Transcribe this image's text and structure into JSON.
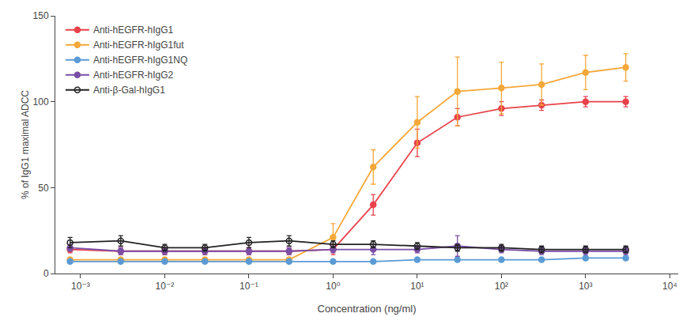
{
  "chart_data": {
    "type": "line",
    "xlabel": "Concentration (ng/ml)",
    "ylabel": "% of IgG1 maximal ADCC",
    "log": "x",
    "grid": false,
    "legend": "upper left",
    "marker": "circle",
    "xlim": [
      0.0005011872336272725,
      12589.254117941662
    ],
    "xticks": [
      {
        "value": 0.001,
        "label": "10⁻³"
      },
      {
        "value": 0.01,
        "label": "10⁻²"
      },
      {
        "value": 0.1,
        "label": "10⁻¹"
      },
      {
        "value": 1,
        "label": "10⁰"
      },
      {
        "value": 10,
        "label": "10¹"
      },
      {
        "value": 100,
        "label": "10²"
      },
      {
        "value": 1000,
        "label": "10³"
      },
      {
        "value": 10000,
        "label": "10⁴"
      }
    ],
    "ylim": [
      0,
      150
    ],
    "yticks": [
      0,
      50,
      100,
      150
    ],
    "x": [
      0.00075,
      0.003,
      0.01,
      0.03,
      0.1,
      0.3,
      1.0,
      3.0,
      10.0,
      30.0,
      100.0,
      300.0,
      1000.0,
      3000.0
    ],
    "series": [
      {
        "name": "Anti-hEGFR-hIgG1",
        "color": "#e8424a",
        "values": [
          14,
          13,
          13,
          13,
          13,
          13,
          14,
          40,
          76,
          91,
          96,
          98,
          100,
          100
        ],
        "yerr": [
          2,
          2,
          2,
          2,
          2,
          2,
          3,
          6,
          8,
          5,
          4,
          3,
          3,
          3
        ]
      },
      {
        "name": "Anti-hEGFR-hIgG1fut",
        "color": "#f5a83a",
        "values": [
          8,
          8,
          8,
          8,
          8,
          8,
          21,
          62,
          88,
          106,
          108,
          110,
          117,
          120
        ],
        "yerr": [
          1,
          1,
          1,
          1,
          1,
          1,
          8,
          10,
          15,
          20,
          15,
          12,
          10,
          8
        ]
      },
      {
        "name": "Anti-hEGFR-hIgG1NQ",
        "color": "#5b9bd5",
        "values": [
          7,
          7,
          7,
          7,
          7,
          7,
          7,
          7,
          8,
          8,
          8,
          8,
          9,
          9
        ],
        "yerr": [
          1,
          1,
          1,
          1,
          1,
          1,
          1,
          1,
          1,
          1,
          1,
          1,
          1,
          1
        ]
      },
      {
        "name": "Anti-hEGFR-hIgG2",
        "color": "#7b4fa6",
        "values": [
          15,
          13,
          13,
          13,
          13,
          13,
          14,
          14,
          14,
          16,
          14,
          13,
          13,
          13
        ],
        "yerr": [
          2,
          2,
          2,
          2,
          2,
          2,
          2,
          3,
          2,
          6,
          2,
          2,
          2,
          2
        ]
      },
      {
        "name": "Anti-β-Gal-hIgG1",
        "color": "#222222",
        "marker": "circle-open",
        "values": [
          18,
          19,
          15,
          15,
          18,
          19,
          17,
          17,
          16,
          15,
          15,
          14,
          14,
          14
        ],
        "yerr": [
          3,
          3,
          2,
          2,
          3,
          3,
          2,
          2,
          2,
          2,
          2,
          2,
          2,
          2
        ]
      }
    ]
  }
}
